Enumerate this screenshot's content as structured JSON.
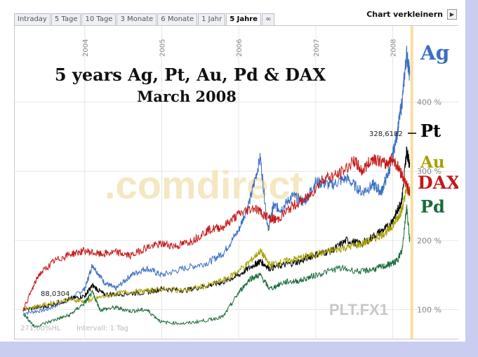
{
  "tabs": [
    {
      "label": "Intraday",
      "active": false
    },
    {
      "label": "5 Tage",
      "active": false
    },
    {
      "label": "10 Tage",
      "active": false
    },
    {
      "label": "3 Monate",
      "active": false
    },
    {
      "label": "6 Monate",
      "active": false
    },
    {
      "label": "1 Jahr",
      "active": false
    },
    {
      "label": "5 Jahre",
      "active": true
    },
    {
      "label": "∞",
      "active": false
    }
  ],
  "shrink_label": "Chart verkleinern",
  "shrink_icon": "play-right-icon",
  "watermark": ".comdirect",
  "footer": {
    "hl": "271,00%HL",
    "interval": "Intervall: 1 Tag",
    "symbol": "PLT.FX1"
  },
  "chart_data": {
    "type": "line",
    "title_line1": "5 years Ag, Pt, Au, Pd & DAX",
    "title_line2": "March 2008",
    "x_ticks": [
      "2004",
      "2005",
      "2006",
      "2007",
      "2008"
    ],
    "y_ticks": [
      "100 %",
      "200 %",
      "300 %",
      "400 %"
    ],
    "ylim": [
      58,
      510
    ],
    "xlim": [
      2003.2,
      2008.25
    ],
    "annotations": {
      "start_value": "88,0304",
      "current_value": "328,6182"
    },
    "series": [
      {
        "name": "Ag",
        "color": "#3a6fc4",
        "x": [
          2003.2,
          2003.5,
          2003.8,
          2004.0,
          2004.1,
          2004.25,
          2004.4,
          2004.6,
          2004.8,
          2005.0,
          2005.3,
          2005.6,
          2005.8,
          2006.0,
          2006.15,
          2006.28,
          2006.38,
          2006.45,
          2006.55,
          2006.7,
          2006.85,
          2007.0,
          2007.2,
          2007.4,
          2007.6,
          2007.75,
          2007.85,
          2007.95,
          2008.05,
          2008.12,
          2008.18,
          2008.22
        ],
        "y": [
          95,
          100,
          115,
          130,
          165,
          140,
          130,
          150,
          160,
          150,
          160,
          168,
          182,
          215,
          260,
          320,
          215,
          250,
          245,
          265,
          255,
          285,
          280,
          290,
          270,
          280,
          270,
          300,
          350,
          400,
          470,
          440
        ]
      },
      {
        "name": "Pt",
        "color": "#000000",
        "x": [
          2003.2,
          2003.5,
          2003.8,
          2004.0,
          2004.1,
          2004.25,
          2004.5,
          2004.8,
          2005.0,
          2005.3,
          2005.6,
          2005.8,
          2006.0,
          2006.2,
          2006.28,
          2006.4,
          2006.6,
          2006.8,
          2007.0,
          2007.2,
          2007.4,
          2007.6,
          2007.8,
          2007.95,
          2008.05,
          2008.12,
          2008.18,
          2008.22
        ],
        "y": [
          100,
          105,
          115,
          120,
          135,
          122,
          123,
          125,
          130,
          128,
          135,
          140,
          150,
          165,
          170,
          160,
          165,
          170,
          180,
          185,
          200,
          195,
          210,
          220,
          240,
          260,
          330,
          310
        ]
      },
      {
        "name": "Au",
        "color": "#a8a000",
        "x": [
          2003.2,
          2003.5,
          2003.8,
          2004.0,
          2004.2,
          2004.5,
          2004.8,
          2005.0,
          2005.3,
          2005.6,
          2005.85,
          2006.1,
          2006.28,
          2006.4,
          2006.6,
          2006.8,
          2007.0,
          2007.2,
          2007.4,
          2007.6,
          2007.8,
          2007.95,
          2008.05,
          2008.12,
          2008.18,
          2008.22
        ],
        "y": [
          100,
          108,
          115,
          112,
          118,
          125,
          127,
          130,
          128,
          135,
          145,
          165,
          185,
          165,
          170,
          175,
          180,
          185,
          190,
          195,
          205,
          215,
          230,
          245,
          275,
          270
        ]
      },
      {
        "name": "Pd",
        "color": "#1a6b3a",
        "x": [
          2003.2,
          2003.35,
          2003.6,
          2003.8,
          2004.0,
          2004.1,
          2004.2,
          2004.4,
          2004.6,
          2004.8,
          2005.0,
          2005.3,
          2005.6,
          2005.8,
          2006.0,
          2006.15,
          2006.28,
          2006.4,
          2006.6,
          2006.8,
          2007.0,
          2007.3,
          2007.6,
          2007.8,
          2007.95,
          2008.05,
          2008.12,
          2008.18,
          2008.22
        ],
        "y": [
          95,
          75,
          85,
          92,
          110,
          125,
          100,
          103,
          98,
          100,
          82,
          80,
          85,
          90,
          125,
          145,
          150,
          130,
          140,
          142,
          150,
          160,
          155,
          160,
          165,
          170,
          185,
          250,
          200
        ]
      },
      {
        "name": "DAX",
        "color": "#c41818",
        "x": [
          2003.2,
          2003.4,
          2003.6,
          2003.8,
          2004.0,
          2004.2,
          2004.4,
          2004.6,
          2004.8,
          2005.0,
          2005.2,
          2005.4,
          2005.6,
          2005.8,
          2006.0,
          2006.2,
          2006.4,
          2006.5,
          2006.7,
          2006.9,
          2007.1,
          2007.3,
          2007.5,
          2007.6,
          2007.75,
          2007.9,
          2008.0,
          2008.1,
          2008.18,
          2008.22
        ],
        "y": [
          100,
          150,
          170,
          180,
          185,
          180,
          183,
          178,
          190,
          195,
          192,
          200,
          215,
          220,
          238,
          248,
          232,
          230,
          250,
          262,
          290,
          295,
          315,
          300,
          320,
          310,
          318,
          300,
          280,
          270
        ]
      }
    ],
    "series_labels": [
      {
        "name": "Ag",
        "color": "#3a6fc4"
      },
      {
        "name": "Pt",
        "color": "#000000"
      },
      {
        "name": "Au",
        "color": "#a8a000"
      },
      {
        "name": "DAX",
        "color": "#c41818"
      },
      {
        "name": "Pd",
        "color": "#1a6b3a"
      }
    ]
  }
}
